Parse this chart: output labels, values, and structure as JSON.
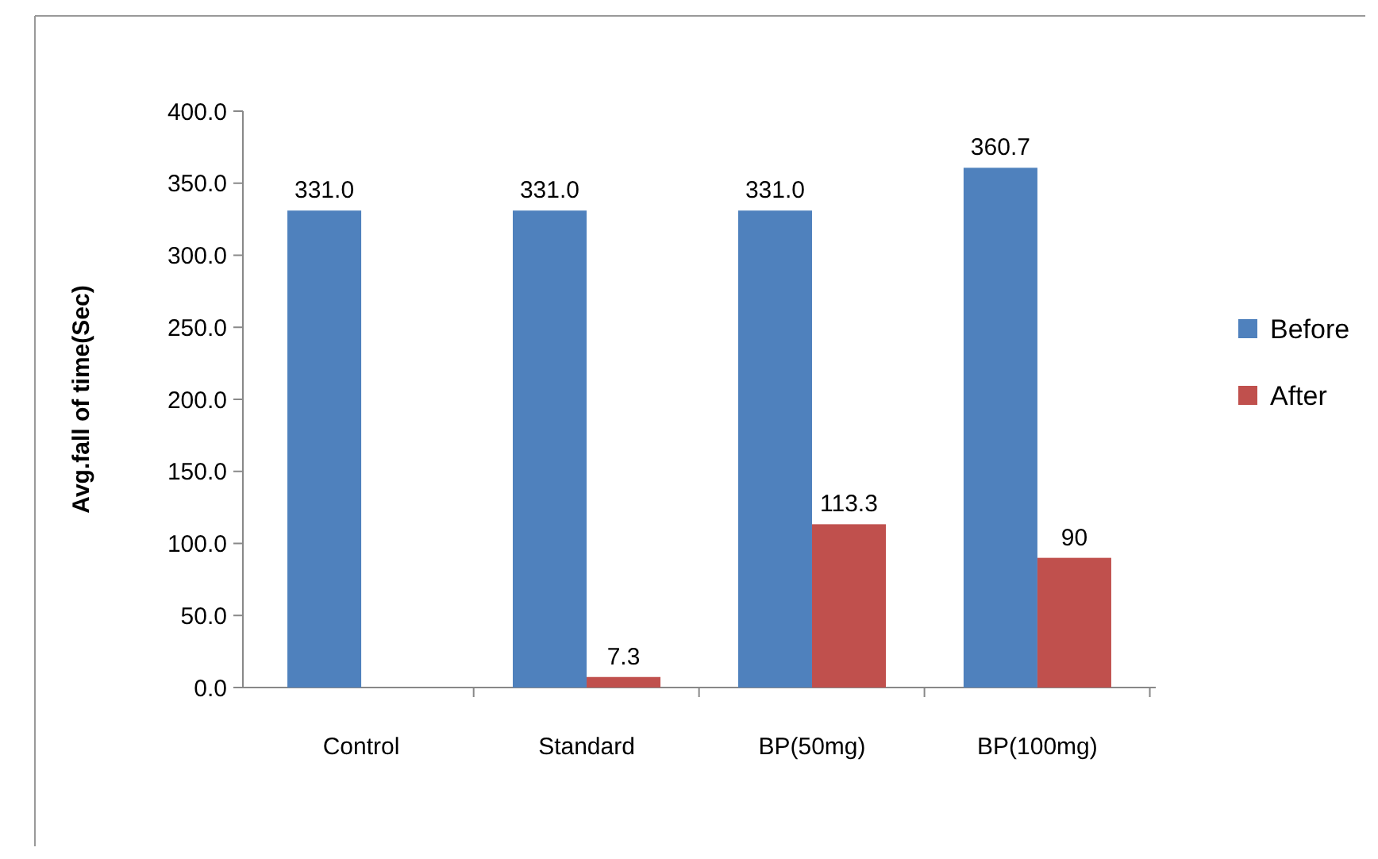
{
  "chart_data": {
    "type": "bar",
    "ylabel": "Avg.fall of time(Sec)",
    "categories": [
      "Control",
      "Standard",
      "BP(50mg)",
      "BP(100mg)"
    ],
    "series": [
      {
        "name": "Before",
        "color": "#4f81bd",
        "values": [
          331.0,
          331.0,
          331.0,
          360.7
        ],
        "value_labels": [
          "331.0",
          "331.0",
          "331.0",
          "360.7"
        ]
      },
      {
        "name": "After",
        "color": "#c0504d",
        "values": [
          null,
          7.3,
          113.3,
          90
        ],
        "value_labels": [
          null,
          "7.3",
          "113.3",
          "90"
        ]
      }
    ],
    "ylim": [
      0,
      400
    ],
    "yticks": [
      {
        "value": 0,
        "label": "0.0"
      },
      {
        "value": 50,
        "label": "50.0"
      },
      {
        "value": 100,
        "label": "100.0"
      },
      {
        "value": 150,
        "label": "150.0"
      },
      {
        "value": 200,
        "label": "200.0"
      },
      {
        "value": 250,
        "label": "250.0"
      },
      {
        "value": 300,
        "label": "300.0"
      },
      {
        "value": 350,
        "label": "350.0"
      },
      {
        "value": 400,
        "label": "400.0"
      }
    ],
    "legend": "right",
    "grid": false
  }
}
